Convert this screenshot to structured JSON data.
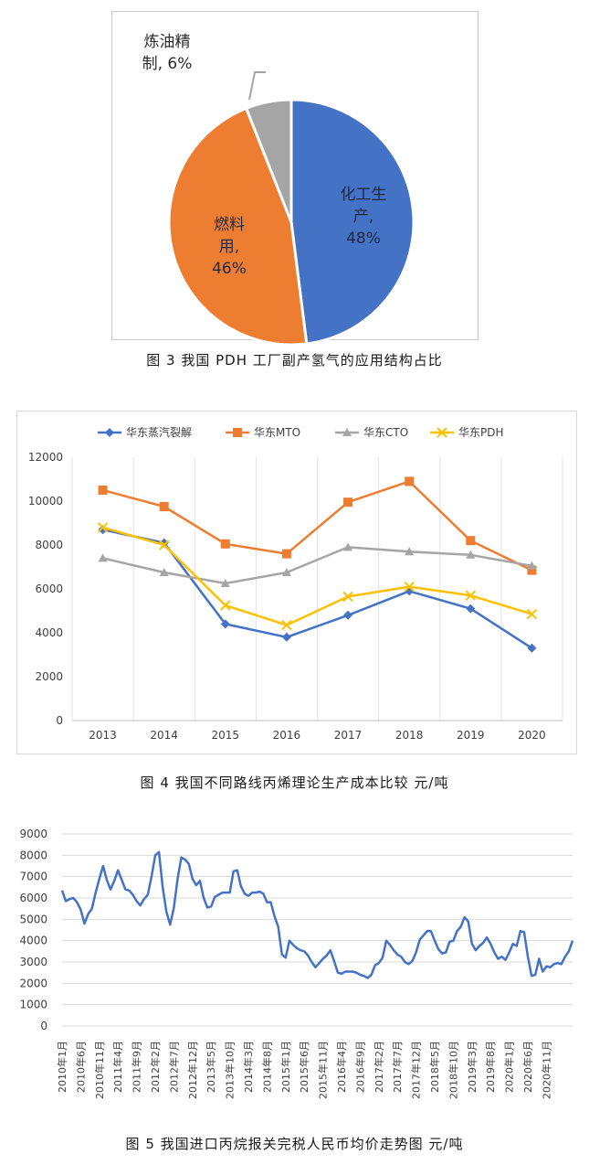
{
  "chart_data": [
    {
      "type": "pie",
      "caption": "图 3  我国 PDH 工厂副产氢气的应用结构占比",
      "slices": [
        {
          "label_lines": [
            "化工生",
            "产,",
            "48%"
          ],
          "value": 48,
          "color": "#4472c4"
        },
        {
          "label_lines": [
            "燃料",
            "用,",
            "46%"
          ],
          "value": 46,
          "color": "#ed7d31"
        },
        {
          "label_lines": [
            "炼油精",
            "制, 6%"
          ],
          "value": 6,
          "color": "#a5a5a5"
        }
      ]
    },
    {
      "type": "line",
      "caption": "图 4  我国不同路线丙烯理论生产成本比较   元/吨",
      "categories": [
        "2013",
        "2014",
        "2015",
        "2016",
        "2017",
        "2018",
        "2019",
        "2020"
      ],
      "ylim": [
        0,
        12000
      ],
      "yticks": [
        "0",
        "2000",
        "4000",
        "6000",
        "8000",
        "10000",
        "12000"
      ],
      "grid": "vertical",
      "legend_position": "top",
      "series": [
        {
          "name": "华东蒸汽裂解",
          "color": "#4472c4",
          "marker": "diamond",
          "values": [
            8700,
            8100,
            4400,
            3800,
            4800,
            5900,
            5100,
            3300
          ]
        },
        {
          "name": "华东MTO",
          "color": "#ed7d31",
          "marker": "square",
          "values": [
            10500,
            9750,
            8050,
            7600,
            9950,
            10900,
            8200,
            6850
          ]
        },
        {
          "name": "华东CTO",
          "color": "#a5a5a5",
          "marker": "triangle",
          "values": [
            7400,
            6750,
            6250,
            6750,
            7900,
            7700,
            7550,
            7050
          ]
        },
        {
          "name": "华东PDH",
          "color": "#ffc000",
          "marker": "x",
          "values": [
            8800,
            8000,
            5250,
            4350,
            5650,
            6100,
            5700,
            4850
          ]
        }
      ]
    },
    {
      "type": "line",
      "caption": "图 5  我国进口丙烷报关完税人民币均价走势图   元/吨",
      "ylim": [
        0,
        9000
      ],
      "yticks": [
        "0",
        "1000",
        "2000",
        "3000",
        "4000",
        "5000",
        "6000",
        "7000",
        "8000",
        "9000"
      ],
      "xtick_labels": [
        "2010年1月",
        "2010年6月",
        "2010年11月",
        "2011年4月",
        "2011年9月",
        "2012年2月",
        "2012年7月",
        "2012年12月",
        "2013年5月",
        "2013年10月",
        "2014年3月",
        "2014年8月",
        "2015年1月",
        "2015年6月",
        "2015年11月",
        "2016年4月",
        "2016年9月",
        "2017年2月",
        "2017年7月",
        "2017年12月",
        "2018年5月",
        "2018年10月",
        "2019年3月",
        "2019年8月",
        "2020年1月",
        "2020年6月",
        "2020年11月"
      ],
      "x_start": "2010年1月",
      "x_end": "2020年12月",
      "series": [
        {
          "color": "#4472c4",
          "values": [
            6350,
            5850,
            5950,
            6000,
            5800,
            5450,
            4800,
            5250,
            5500,
            6250,
            6900,
            7500,
            6850,
            6400,
            6800,
            7300,
            6850,
            6400,
            6350,
            6150,
            5850,
            5650,
            5950,
            6150,
            7000,
            8000,
            8150,
            6500,
            5350,
            4750,
            5550,
            6900,
            7900,
            7800,
            7600,
            6900,
            6600,
            6800,
            6000,
            5550,
            5600,
            6050,
            6150,
            6250,
            6250,
            6250,
            7250,
            7300,
            6550,
            6200,
            6100,
            6250,
            6250,
            6300,
            6200,
            5800,
            5800,
            5150,
            4650,
            3350,
            3200,
            4000,
            3800,
            3650,
            3550,
            3500,
            3300,
            3000,
            2750,
            2950,
            3150,
            3300,
            3550,
            3050,
            2500,
            2450,
            2550,
            2550,
            2550,
            2500,
            2400,
            2350,
            2250,
            2400,
            2850,
            2950,
            3200,
            4000,
            3800,
            3550,
            3350,
            3250,
            3000,
            2900,
            3050,
            3450,
            4050,
            4250,
            4450,
            4450,
            4000,
            3600,
            3400,
            3450,
            3950,
            4000,
            4450,
            4650,
            5100,
            4900,
            3850,
            3550,
            3750,
            3900,
            4150,
            3850,
            3450,
            3150,
            3250,
            3100,
            3450,
            3850,
            3750,
            4450,
            4400,
            3250,
            2350,
            2400,
            3150,
            2550,
            2800,
            2750,
            2900,
            2950,
            2900,
            3250,
            3500,
            4000
          ]
        }
      ]
    }
  ]
}
